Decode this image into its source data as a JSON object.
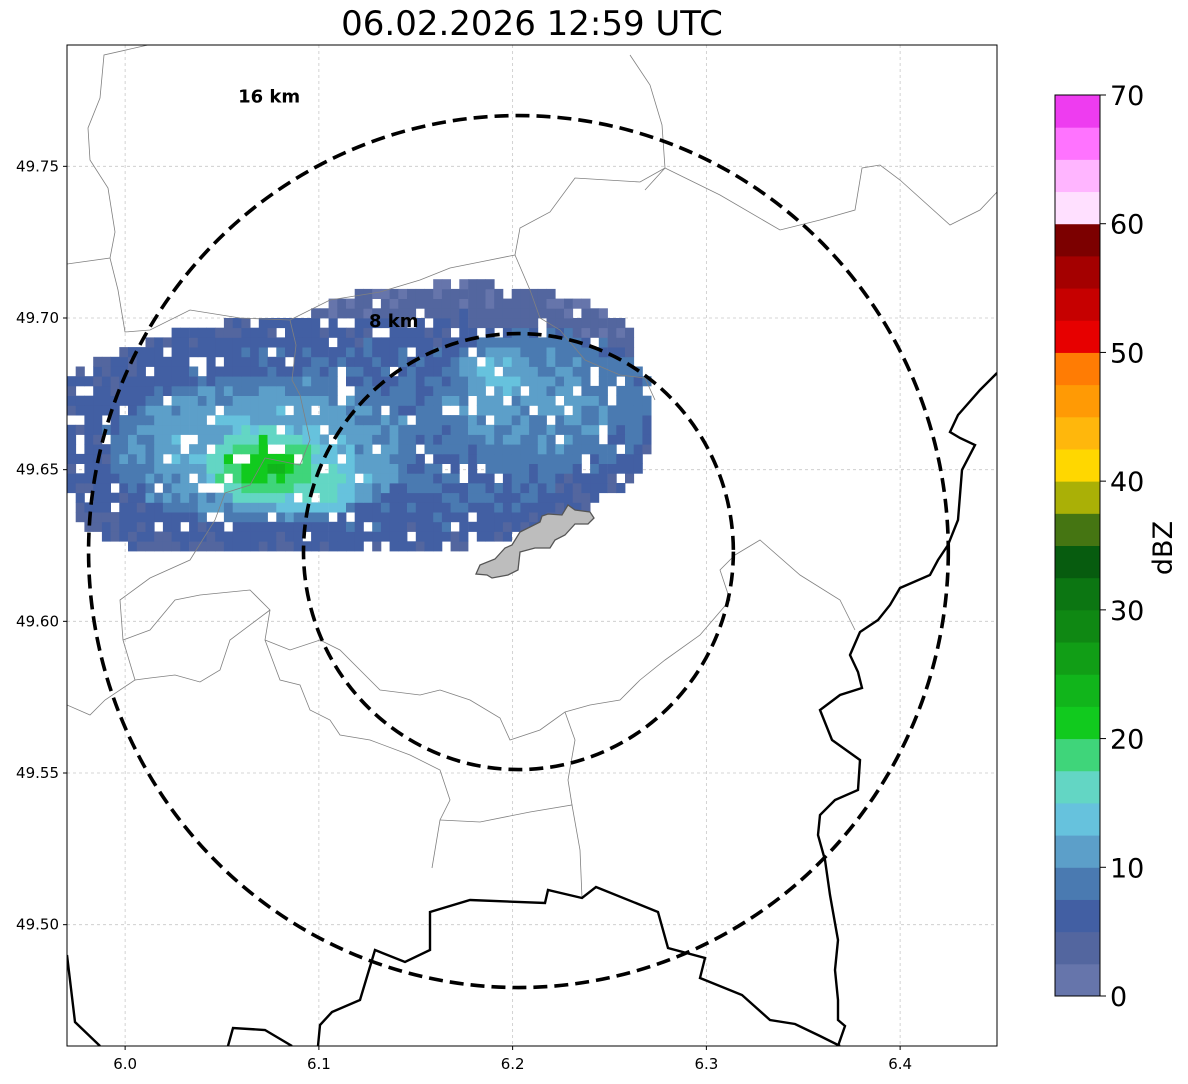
{
  "title": "06.02.2026 12:59 UTC",
  "map": {
    "lon_range": [
      5.97,
      6.45
    ],
    "lat_range": [
      49.46,
      49.79
    ],
    "lon_ticks": [
      6.0,
      6.1,
      6.2,
      6.3,
      6.4
    ],
    "lon_tick_labels": [
      "6.0",
      "6.1",
      "6.2",
      "6.3",
      "6.4"
    ],
    "lat_ticks": [
      49.5,
      49.55,
      49.6,
      49.65,
      49.7,
      49.75
    ],
    "lat_tick_labels": [
      "49.50",
      "49.55",
      "49.60",
      "49.65",
      "49.70",
      "49.75"
    ],
    "grid": "dashed-light-gray",
    "radar_center": {
      "lon": 6.203,
      "lat": 49.623
    },
    "rings": [
      {
        "radius_km": 8,
        "label": "8 km"
      },
      {
        "radius_km": 16,
        "label": "16 km"
      }
    ],
    "city_area": {
      "fill": "#bdbdbd",
      "stroke": "#555555"
    },
    "border_color": "#000000",
    "boundary_color": "#808080"
  },
  "colorbar": {
    "label": "dBZ",
    "min": 0,
    "max": 70,
    "step": 2.5,
    "ticks": [
      0,
      10,
      20,
      30,
      40,
      50,
      60,
      70
    ],
    "tick_labels": [
      "0",
      "10",
      "20",
      "30",
      "40",
      "50",
      "60",
      "70"
    ],
    "colors": [
      "#6675ab",
      "#53669f",
      "#425fa3",
      "#4a7ab1",
      "#5c9fc9",
      "#66c2dd",
      "#63d6c4",
      "#3fd57a",
      "#11ca1e",
      "#11b51b",
      "#119e16",
      "#0f8813",
      "#0c7612",
      "#075c0f",
      "#457512",
      "#aab006",
      "#ffd700",
      "#ffb70c",
      "#ff9a05",
      "#ff7c04",
      "#e70000",
      "#c60000",
      "#a40000",
      "#7c0000",
      "#ffe0ff",
      "#ffb5ff",
      "#ff73ff",
      "#ee3cf0"
    ]
  },
  "echoes": [
    {
      "lon": 6.07,
      "lat": 49.65,
      "rlon": 0.03,
      "rlat": 0.013,
      "dbz": 22
    },
    {
      "lon": 6.09,
      "lat": 49.645,
      "rlon": 0.035,
      "rlat": 0.012,
      "dbz": 17
    },
    {
      "lon": 6.07,
      "lat": 49.655,
      "rlon": 0.08,
      "rlat": 0.025,
      "dbz": 13
    },
    {
      "lon": 6.11,
      "lat": 49.66,
      "rlon": 0.16,
      "rlat": 0.04,
      "dbz": 8
    },
    {
      "lon": 6.21,
      "lat": 49.67,
      "rlon": 0.06,
      "rlat": 0.025,
      "dbz": 11
    },
    {
      "lon": 6.19,
      "lat": 49.68,
      "rlon": 0.02,
      "rlat": 0.01,
      "dbz": 14
    },
    {
      "lon": 6.03,
      "lat": 49.64,
      "rlon": 0.06,
      "rlat": 0.02,
      "dbz": 6
    },
    {
      "lon": 6.17,
      "lat": 49.69,
      "rlon": 0.09,
      "rlat": 0.02,
      "dbz": 4
    },
    {
      "lon": 6.22,
      "lat": 49.67,
      "rlon": 0.04,
      "rlat": 0.015,
      "dbz": 9
    }
  ]
}
